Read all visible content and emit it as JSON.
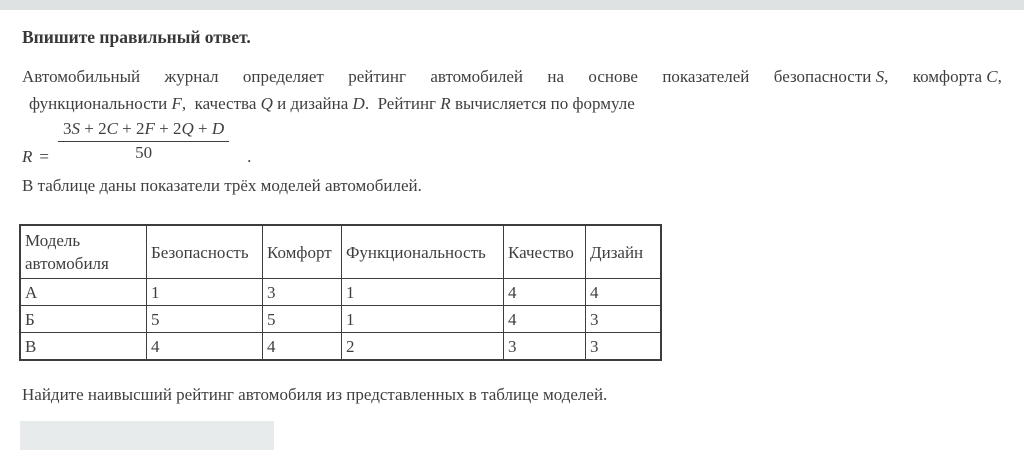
{
  "title": "Впишите правильный ответ.",
  "statement": {
    "line1_groups": [
      {
        "t": "Автомобильный"
      },
      {
        "t": "журнал"
      },
      {
        "t": "определяет"
      },
      {
        "t": "рейтинг"
      },
      {
        "t": "автомобилей"
      },
      {
        "t": "на"
      },
      {
        "t": "основе"
      },
      {
        "t": "показателей"
      },
      {
        "t": "безопасности ",
        "i": "S",
        "t2": ","
      },
      {
        "t": "комфорта ",
        "i": "C",
        "t2": ","
      }
    ],
    "line2_parts": [
      {
        "t": "функциональности "
      },
      {
        "i": "F"
      },
      {
        "t": ", качества "
      },
      {
        "i": "Q"
      },
      {
        "t": " и дизайна "
      },
      {
        "i": "D"
      },
      {
        "t": ". Рейтинг "
      },
      {
        "i": "R"
      },
      {
        "t": " вычисляется по формуле"
      }
    ]
  },
  "formula": {
    "lhs": "R",
    "equals": "=",
    "numerator_parts": [
      "3",
      "S",
      " + 2",
      "C",
      " + 2",
      "F",
      " + 2",
      "Q",
      " + ",
      "D"
    ],
    "denominator": "50",
    "period": "."
  },
  "table_intro": "В таблице даны показатели трёх моделей автомобилей.",
  "table": {
    "headers": [
      "Модель автомобиля",
      "Безопасность",
      "Комфорт",
      "Функциональность",
      "Качество",
      "Дизайн"
    ],
    "rows": [
      {
        "model": "А",
        "values": [
          "1",
          "3",
          "1",
          "4",
          "4"
        ]
      },
      {
        "model": "Б",
        "values": [
          "5",
          "5",
          "1",
          "4",
          "3"
        ]
      },
      {
        "model": "В",
        "values": [
          "4",
          "4",
          "2",
          "3",
          "3"
        ]
      }
    ]
  },
  "question": "Найдите наивысший рейтинг автомобиля из представленных в таблице моделей.",
  "answer_input": {
    "value": "",
    "placeholder": ""
  }
}
